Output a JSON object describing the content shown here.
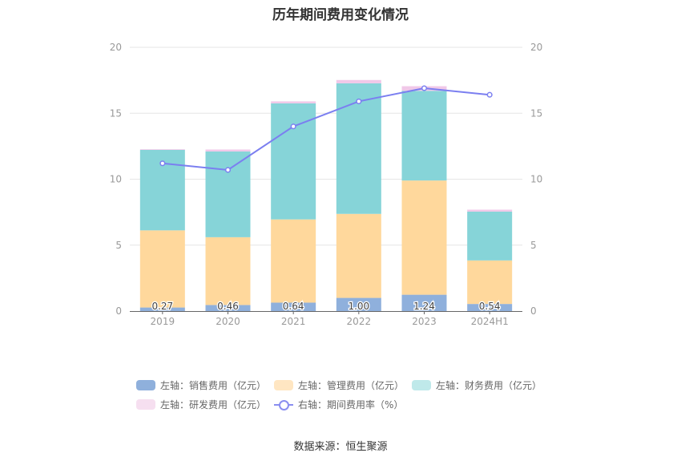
{
  "chart_data": {
    "type": "bar",
    "title": "历年期间费用变化情况",
    "categories": [
      "2019",
      "2020",
      "2021",
      "2022",
      "2023",
      "2024H1"
    ],
    "left_axis": {
      "ylim": [
        0,
        20
      ],
      "ticks": [
        0,
        5,
        10,
        15,
        20
      ]
    },
    "right_axis": {
      "ylim": [
        0,
        20
      ],
      "ticks": [
        0,
        5,
        10,
        15,
        20
      ]
    },
    "stacked": true,
    "series": [
      {
        "name": "左轴：销售费用（亿元）",
        "axis": "left",
        "color": "#8fb0dc",
        "values": [
          0.27,
          0.46,
          0.64,
          1.0,
          1.24,
          0.54
        ],
        "show_labels": true
      },
      {
        "name": "左轴：管理费用（亿元）",
        "axis": "left",
        "color": "#ffd89c",
        "values": [
          5.85,
          5.14,
          6.31,
          6.37,
          8.66,
          3.3
        ]
      },
      {
        "name": "左轴：财务费用（亿元）",
        "axis": "left",
        "color": "#86d4d8",
        "values": [
          6.1,
          6.5,
          8.8,
          9.9,
          6.8,
          3.7
        ]
      },
      {
        "name": "左轴：研发费用（亿元）",
        "axis": "left",
        "color": "#f0c8e8",
        "values": [
          0.05,
          0.15,
          0.15,
          0.25,
          0.35,
          0.15
        ]
      }
    ],
    "line_series": {
      "name": "右轴：期间费用率（%）",
      "axis": "right",
      "type": "line",
      "color": "#7b7ff0",
      "values": [
        11.2,
        10.7,
        14.0,
        15.9,
        16.9,
        16.4
      ]
    },
    "grid": true,
    "legend_position": "bottom"
  },
  "source": "数据来源：恒生聚源"
}
